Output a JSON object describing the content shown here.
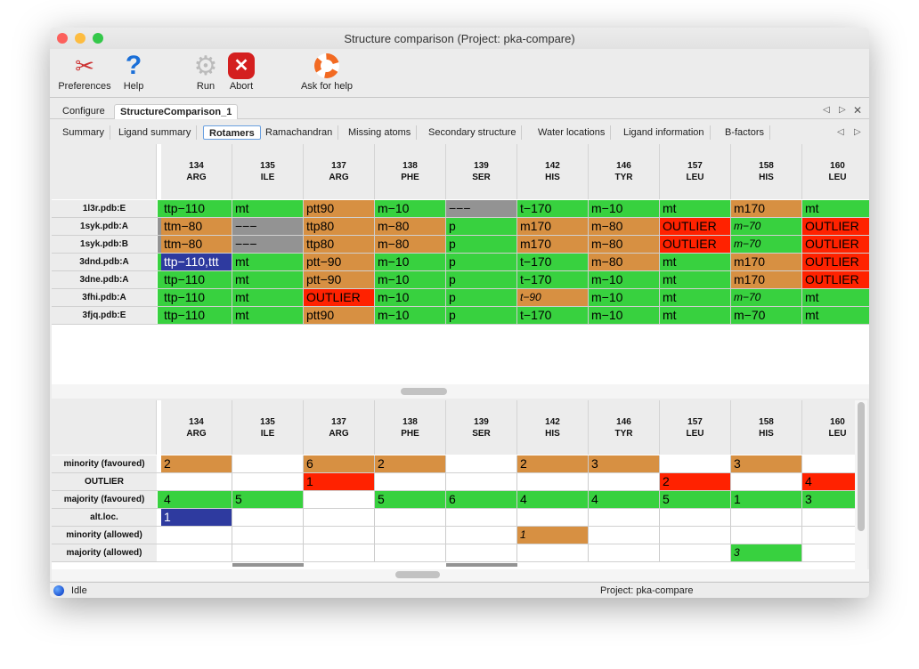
{
  "window": {
    "title": "Structure comparison (Project: pka-compare)"
  },
  "toolbar": {
    "preferences": "Preferences",
    "help": "Help",
    "run": "Run",
    "abort": "Abort",
    "ask_help": "Ask for help"
  },
  "outer_tabs": [
    "Configure",
    "StructureComparison_1"
  ],
  "outer_tabs_active": 1,
  "inner_tabs": [
    "Summary",
    "Ligand summary",
    "Rotamers",
    "Ramachandran",
    "Missing atoms",
    "Secondary structure",
    "Water locations",
    "Ligand information",
    "B-factors"
  ],
  "inner_tabs_active": 2,
  "colors": {
    "g": "#38d13f",
    "o": "#d79042",
    "r": "#ff2200",
    "x": "#939393",
    "b": "#2e3a9f",
    "w": "#ffffff"
  },
  "columns": [
    {
      "num": "134",
      "res": "ARG"
    },
    {
      "num": "135",
      "res": "ILE"
    },
    {
      "num": "137",
      "res": "ARG"
    },
    {
      "num": "138",
      "res": "PHE"
    },
    {
      "num": "139",
      "res": "SER"
    },
    {
      "num": "142",
      "res": "HIS"
    },
    {
      "num": "146",
      "res": "TYR"
    },
    {
      "num": "157",
      "res": "LEU"
    },
    {
      "num": "158",
      "res": "HIS"
    },
    {
      "num": "160",
      "res": "LEU"
    }
  ],
  "top_table": [
    {
      "label": "1l3r.pdb:E",
      "strip": "g",
      "cells": [
        [
          "ttp−110",
          "g"
        ],
        [
          "mt",
          "g"
        ],
        [
          "ptt90",
          "o"
        ],
        [
          "m−10",
          "g"
        ],
        [
          "−−−",
          "x"
        ],
        [
          "t−170",
          "g"
        ],
        [
          "m−10",
          "g"
        ],
        [
          "mt",
          "g"
        ],
        [
          "m170",
          "o"
        ],
        [
          "mt",
          "g"
        ]
      ]
    },
    {
      "label": "1syk.pdb:A",
      "strip": "x",
      "cells": [
        [
          "ttm−80",
          "o"
        ],
        [
          "−−−",
          "x"
        ],
        [
          "ttp80",
          "o"
        ],
        [
          "m−80",
          "o"
        ],
        [
          "p",
          "g"
        ],
        [
          "m170",
          "o"
        ],
        [
          "m−80",
          "o"
        ],
        [
          "OUTLIER",
          "r"
        ],
        [
          "m−70",
          "g",
          "i"
        ],
        [
          "OUTLIER",
          "r"
        ]
      ]
    },
    {
      "label": "1syk.pdb:B",
      "strip": "x",
      "cells": [
        [
          "ttm−80",
          "o"
        ],
        [
          "−−−",
          "x"
        ],
        [
          "ttp80",
          "o"
        ],
        [
          "m−80",
          "o"
        ],
        [
          "p",
          "g"
        ],
        [
          "m170",
          "o"
        ],
        [
          "m−80",
          "o"
        ],
        [
          "OUTLIER",
          "r"
        ],
        [
          "m−70",
          "g",
          "i"
        ],
        [
          "OUTLIER",
          "r"
        ]
      ]
    },
    {
      "label": "3dnd.pdb:A",
      "strip": "g",
      "cells": [
        [
          "ttp−110,ttt",
          "b"
        ],
        [
          "mt",
          "g"
        ],
        [
          "ptt−90",
          "o"
        ],
        [
          "m−10",
          "g"
        ],
        [
          "p",
          "g"
        ],
        [
          "t−170",
          "g"
        ],
        [
          "m−80",
          "o"
        ],
        [
          "mt",
          "g"
        ],
        [
          "m170",
          "o"
        ],
        [
          "OUTLIER",
          "r"
        ]
      ]
    },
    {
      "label": "3dne.pdb:A",
      "strip": "g",
      "cells": [
        [
          "ttp−110",
          "g"
        ],
        [
          "mt",
          "g"
        ],
        [
          "ptt−90",
          "o"
        ],
        [
          "m−10",
          "g"
        ],
        [
          "p",
          "g"
        ],
        [
          "t−170",
          "g"
        ],
        [
          "m−10",
          "g"
        ],
        [
          "mt",
          "g"
        ],
        [
          "m170",
          "o"
        ],
        [
          "OUTLIER",
          "r"
        ]
      ]
    },
    {
      "label": "3fhi.pdb:A",
      "strip": "g",
      "cells": [
        [
          "ttp−110",
          "g"
        ],
        [
          "mt",
          "g"
        ],
        [
          "OUTLIER",
          "r"
        ],
        [
          "m−10",
          "g"
        ],
        [
          "p",
          "g"
        ],
        [
          "t−90",
          "o",
          "i"
        ],
        [
          "m−10",
          "g"
        ],
        [
          "mt",
          "g"
        ],
        [
          "m−70",
          "g",
          "i"
        ],
        [
          "mt",
          "g"
        ]
      ]
    },
    {
      "label": "3fjq.pdb:E",
      "strip": "g",
      "cells": [
        [
          "ttp−110",
          "g"
        ],
        [
          "mt",
          "g"
        ],
        [
          "ptt90",
          "o"
        ],
        [
          "m−10",
          "g"
        ],
        [
          "p",
          "g"
        ],
        [
          "t−170",
          "g"
        ],
        [
          "m−10",
          "g"
        ],
        [
          "mt",
          "g"
        ],
        [
          "m−70",
          "g"
        ],
        [
          "mt",
          "g"
        ]
      ]
    }
  ],
  "bottom_table": [
    {
      "label": "minority (favoured)",
      "strip": "w",
      "cells": [
        [
          "2",
          "o"
        ],
        [
          "",
          "w"
        ],
        [
          "6",
          "o"
        ],
        [
          "2",
          "o"
        ],
        [
          "",
          "w"
        ],
        [
          "2",
          "o"
        ],
        [
          "3",
          "o"
        ],
        [
          "",
          "w"
        ],
        [
          "3",
          "o"
        ],
        [
          "",
          "w"
        ]
      ]
    },
    {
      "label": "OUTLIER",
      "strip": "w",
      "cells": [
        [
          "",
          "w"
        ],
        [
          "",
          "w"
        ],
        [
          "1",
          "r"
        ],
        [
          "",
          "w"
        ],
        [
          "",
          "w"
        ],
        [
          "",
          "w"
        ],
        [
          "",
          "w"
        ],
        [
          "2",
          "r"
        ],
        [
          "",
          "w"
        ],
        [
          "4",
          "r"
        ]
      ]
    },
    {
      "label": "majority (favoured)",
      "strip": "g",
      "cells": [
        [
          "4",
          "g"
        ],
        [
          "5",
          "g"
        ],
        [
          "",
          "w"
        ],
        [
          "5",
          "g"
        ],
        [
          "6",
          "g"
        ],
        [
          "4",
          "g"
        ],
        [
          "4",
          "g"
        ],
        [
          "5",
          "g"
        ],
        [
          "1",
          "g"
        ],
        [
          "3",
          "g"
        ]
      ]
    },
    {
      "label": "alt.loc.",
      "strip": "w",
      "cells": [
        [
          "1",
          "b"
        ],
        [
          "",
          "w"
        ],
        [
          "",
          "w"
        ],
        [
          "",
          "w"
        ],
        [
          "",
          "w"
        ],
        [
          "",
          "w"
        ],
        [
          "",
          "w"
        ],
        [
          "",
          "w"
        ],
        [
          "",
          "w"
        ],
        [
          "",
          "w"
        ]
      ]
    },
    {
      "label": "minority (allowed)",
      "strip": "w",
      "cells": [
        [
          "",
          "w"
        ],
        [
          "",
          "w"
        ],
        [
          "",
          "w"
        ],
        [
          "",
          "w"
        ],
        [
          "",
          "w"
        ],
        [
          "1",
          "o",
          "i"
        ],
        [
          "",
          "w"
        ],
        [
          "",
          "w"
        ],
        [
          "",
          "w"
        ],
        [
          "",
          "w"
        ]
      ]
    },
    {
      "label": "majority (allowed)",
      "strip": "w",
      "cells": [
        [
          "",
          "w"
        ],
        [
          "",
          "w"
        ],
        [
          "",
          "w"
        ],
        [
          "",
          "w"
        ],
        [
          "",
          "w"
        ],
        [
          "",
          "w"
        ],
        [
          "",
          "w"
        ],
        [
          "",
          "w"
        ],
        [
          "3",
          "g",
          "i"
        ],
        [
          "",
          "w"
        ]
      ]
    }
  ],
  "status": {
    "state": "Idle",
    "project": "Project: pka-compare"
  }
}
